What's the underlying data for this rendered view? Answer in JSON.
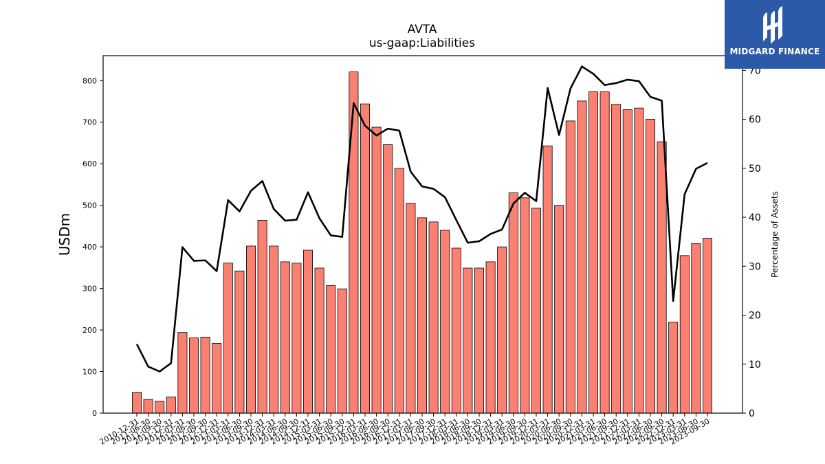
{
  "logo": {
    "text": "MIDGARD FINANCE",
    "icon": "midgard-logo-icon",
    "bg_color": "#2d5aa8"
  },
  "chart_data": {
    "type": "bar",
    "title": "AVTA",
    "subtitle": "us-gaap:Liabilities",
    "ylabel": "USDm",
    "y2label": "Percentage of Assets",
    "ylim": [
      0,
      860
    ],
    "y2lim": [
      0,
      73
    ],
    "yticks": [
      0,
      100,
      200,
      300,
      400,
      500,
      600,
      700,
      800
    ],
    "y2ticks": [
      0,
      10,
      20,
      30,
      40,
      50,
      60,
      70
    ],
    "bar_color": "#fa8072",
    "line_color": "#000000",
    "categories": [
      "2010-12-31",
      "2011-06-30",
      "2011-09-30",
      "2011-12-31",
      "2012-03-31",
      "2012-06-30",
      "2012-09-30",
      "2012-12-31",
      "2013-03-31",
      "2013-06-30",
      "2013-09-30",
      "2013-12-31",
      "2014-03-31",
      "2014-06-30",
      "2014-09-30",
      "2014-12-31",
      "2015-03-31",
      "2015-06-30",
      "2015-09-30",
      "2015-12-31",
      "2016-03-31",
      "2016-06-30",
      "2016-09-30",
      "2016-12-31",
      "2017-03-31",
      "2017-06-30",
      "2017-09-30",
      "2017-12-31",
      "2018-03-31",
      "2018-06-30",
      "2018-09-30",
      "2018-12-31",
      "2019-03-31",
      "2019-06-30",
      "2019-09-30",
      "2019-12-31",
      "2020-03-31",
      "2020-06-30",
      "2020-09-30",
      "2020-12-31",
      "2021-03-31",
      "2021-06-30",
      "2021-09-30",
      "2021-12-31",
      "2022-03-31",
      "2022-06-30",
      "2022-09-30",
      "2022-12-31",
      "2023-03-31",
      "2023-06-30",
      "2023-09-30"
    ],
    "series": [
      {
        "kind": "bar",
        "axis": "left",
        "values": [
          50,
          33,
          29,
          39,
          194,
          181,
          183,
          168,
          361,
          342,
          402,
          464,
          402,
          364,
          361,
          392,
          349,
          307,
          299,
          821,
          744,
          688,
          646,
          589,
          505,
          470,
          460,
          440,
          397,
          349,
          349,
          364,
          400,
          530,
          518,
          493,
          643,
          500,
          703,
          751,
          773,
          773,
          743,
          730,
          734,
          707,
          653,
          219,
          379,
          408,
          421
        ]
      },
      {
        "kind": "line",
        "axis": "right",
        "values": [
          14.1,
          9.5,
          8.5,
          10.2,
          33.9,
          31.1,
          31.2,
          29,
          43.5,
          41.2,
          45.4,
          47.4,
          41.7,
          39.3,
          39.5,
          45.1,
          39.8,
          36.3,
          36,
          63.3,
          58.7,
          56.7,
          58.1,
          57.7,
          49.3,
          46.3,
          45.8,
          44.1,
          39.4,
          34.8,
          35.1,
          36.6,
          37.5,
          42.8,
          45,
          43.3,
          66.4,
          56.8,
          66.3,
          70.8,
          69.3,
          67,
          67.4,
          68.1,
          67.8,
          64.6,
          63.8,
          22.9,
          44.7,
          49.9,
          51.1
        ]
      }
    ]
  }
}
